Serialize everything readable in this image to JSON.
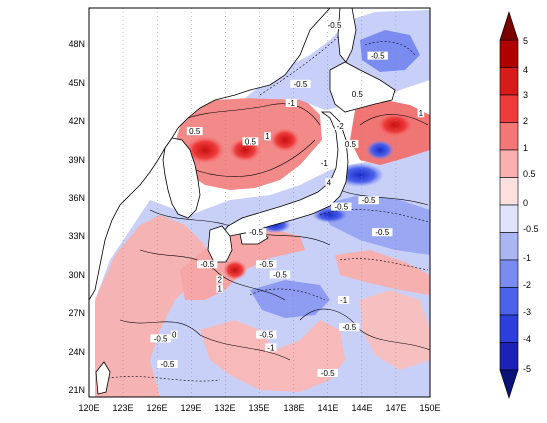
{
  "map": {
    "lon_ticks": [
      "120E",
      "123E",
      "126E",
      "129E",
      "132E",
      "135E",
      "138E",
      "141E",
      "144E",
      "147E",
      "150E"
    ],
    "lat_ticks": [
      "21N",
      "24N",
      "27N",
      "30N",
      "33N",
      "36N",
      "39N",
      "42N",
      "45N",
      "48N"
    ],
    "lon_range": [
      120,
      150
    ],
    "lat_range": [
      19.8,
      50.2
    ],
    "gridlines": "dotted",
    "contour_labels": [
      {
        "text": "-0.5",
        "lon": 141.6,
        "lat": 48.8
      },
      {
        "text": "-0.5",
        "lon": 145.4,
        "lat": 46.4
      },
      {
        "text": "-0.5",
        "lon": 138.6,
        "lat": 44.2
      },
      {
        "text": "0.5",
        "lon": 143.6,
        "lat": 43.4
      },
      {
        "text": "-1",
        "lon": 137.8,
        "lat": 42.7
      },
      {
        "text": "0.5",
        "lon": 129.3,
        "lat": 40.5
      },
      {
        "text": "1",
        "lon": 135.7,
        "lat": 40.1
      },
      {
        "text": "-2",
        "lon": 142.1,
        "lat": 40.9
      },
      {
        "text": "1",
        "lon": 149.2,
        "lat": 41.9
      },
      {
        "text": "0.5",
        "lon": 134.2,
        "lat": 39.7
      },
      {
        "text": "0.5",
        "lon": 143.0,
        "lat": 39.5
      },
      {
        "text": "-1",
        "lon": 140.7,
        "lat": 38.0
      },
      {
        "text": "4",
        "lon": 141.1,
        "lat": 36.5
      },
      {
        "text": "-0.5",
        "lon": 144.6,
        "lat": 35.1
      },
      {
        "text": "-0.5",
        "lon": 142.2,
        "lat": 34.6
      },
      {
        "text": "-0.5",
        "lon": 134.7,
        "lat": 32.6
      },
      {
        "text": "-0.5",
        "lon": 145.8,
        "lat": 32.6
      },
      {
        "text": "-0.5",
        "lon": 130.4,
        "lat": 30.1
      },
      {
        "text": "-0.5",
        "lon": 135.6,
        "lat": 30.1
      },
      {
        "text": "-0.5",
        "lon": 136.8,
        "lat": 29.3
      },
      {
        "text": "2",
        "lon": 131.5,
        "lat": 28.9
      },
      {
        "text": "1",
        "lon": 131.5,
        "lat": 28.2
      },
      {
        "text": "-1",
        "lon": 142.4,
        "lat": 27.3
      },
      {
        "text": "-0.5",
        "lon": 142.9,
        "lat": 25.2
      },
      {
        "text": "0",
        "lon": 127.5,
        "lat": 24.6
      },
      {
        "text": "-0.5",
        "lon": 126.3,
        "lat": 24.3
      },
      {
        "text": "-0.5",
        "lon": 135.6,
        "lat": 24.6
      },
      {
        "text": "-1",
        "lon": 136.0,
        "lat": 23.6
      },
      {
        "text": "-0.5",
        "lon": 126.9,
        "lat": 22.3
      },
      {
        "text": "-0.5",
        "lon": 141.0,
        "lat": 21.6
      }
    ]
  },
  "colorbar": {
    "labels": [
      "5",
      "4",
      "3",
      "2",
      "1",
      "0.5",
      "0",
      "-0.5",
      "-1",
      "-2",
      "-3",
      "-4",
      "-5"
    ],
    "colors": [
      "#7a0000",
      "#b00000",
      "#d91a1a",
      "#ee3b3b",
      "#f47676",
      "#f9b0b0",
      "#fde0e0",
      "#dfe3fb",
      "#aab6f4",
      "#7b8cf0",
      "#4d62ea",
      "#2c3fdd",
      "#1a22b8",
      "#08137a"
    ]
  }
}
